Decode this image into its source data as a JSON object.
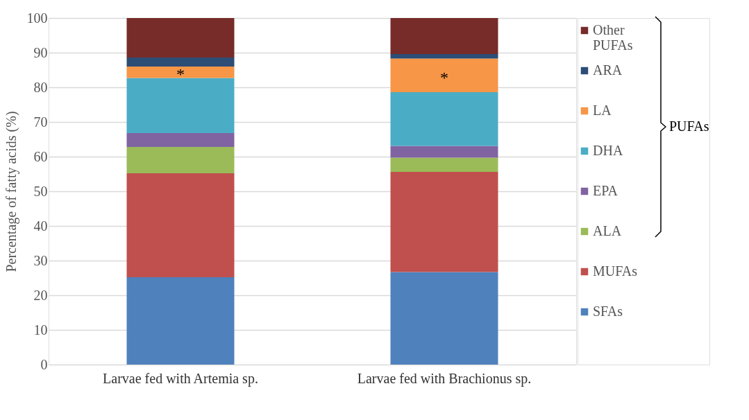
{
  "chart_data": {
    "type": "bar",
    "stacked": true,
    "ylabel": "Percentage of fatty acids (%)",
    "categories": [
      "Larvae fed with Artemia sp.",
      "Larvae fed with Brachionus sp."
    ],
    "series": [
      {
        "name": "SFAs",
        "color": "#4f81bd",
        "values": [
          25.2,
          26.7
        ]
      },
      {
        "name": "MUFAs",
        "color": "#c0504d",
        "values": [
          30.0,
          28.9
        ]
      },
      {
        "name": "ALA",
        "color": "#9bbb59",
        "values": [
          7.6,
          4.1
        ]
      },
      {
        "name": "EPA",
        "color": "#8064a2",
        "values": [
          4.0,
          3.4
        ]
      },
      {
        "name": "DHA",
        "color": "#4bacc6",
        "values": [
          15.9,
          15.5
        ]
      },
      {
        "name": "LA",
        "color": "#f79646",
        "values": [
          3.3,
          9.7
        ]
      },
      {
        "name": "ARA",
        "color": "#2c4d75",
        "values": [
          2.6,
          1.3
        ]
      },
      {
        "name": "Other PUFAs",
        "color": "#772c2a",
        "values": [
          11.4,
          10.4
        ]
      }
    ],
    "ylim": [
      0,
      100
    ],
    "yticks": [
      0,
      10,
      20,
      30,
      40,
      50,
      60,
      70,
      80,
      90,
      100
    ],
    "grid": "y",
    "legend": "right",
    "annotations": [
      "*",
      "*",
      "PUFAs"
    ]
  }
}
